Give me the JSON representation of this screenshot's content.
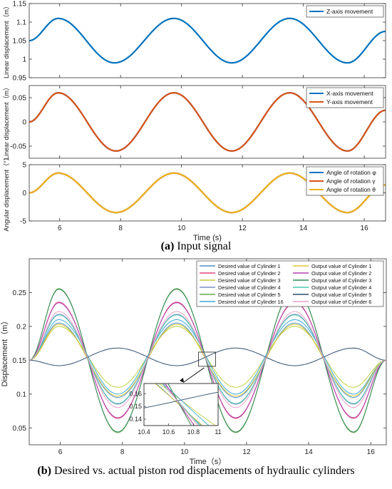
{
  "captions": {
    "a_label": "(a)",
    "a_text": "Input signal",
    "b_label": "(b)",
    "b_text": "Desired vs. actual piston rod displacements of hydraulic cylinders"
  },
  "chart_data": [
    {
      "type": "line",
      "ylabel": "Linear displacement（m）",
      "xlim": [
        5,
        16.7
      ],
      "ylim": [
        0.95,
        1.15
      ],
      "yticks": [
        "0.95",
        "1",
        "1.05",
        "1.1",
        "1.15"
      ],
      "legend_placement": "top-right",
      "series": [
        {
          "name": "Z-axis movement",
          "color": "#0072BD",
          "x": [
            5.0,
            5.95,
            7.8,
            9.75,
            11.65,
            13.55,
            15.45,
            16.7
          ],
          "y": [
            1.05,
            1.11,
            0.99,
            1.11,
            0.99,
            1.11,
            0.99,
            1.075
          ]
        }
      ]
    },
    {
      "type": "line",
      "ylabel": "Linear displacement（m）",
      "xlim": [
        5,
        16.7
      ],
      "ylim": [
        -0.075,
        0.075
      ],
      "yticks": [
        "-0.05",
        "0",
        "0.05"
      ],
      "legend_placement": "top-right",
      "series": [
        {
          "name": "X-axis movement",
          "color": "#0072BD",
          "x": [
            5.0,
            5.95,
            7.85,
            9.75,
            11.65,
            13.55,
            15.45,
            16.7
          ],
          "y": [
            0.0,
            0.06,
            -0.06,
            0.06,
            -0.06,
            0.06,
            -0.06,
            0.024
          ]
        },
        {
          "name": "Y-axis movement",
          "color": "#D95319",
          "x": [
            5.0,
            5.95,
            7.85,
            9.75,
            11.65,
            13.55,
            15.45,
            16.7
          ],
          "y": [
            0.0,
            0.06,
            -0.06,
            0.06,
            -0.06,
            0.06,
            -0.06,
            0.024
          ]
        }
      ]
    },
    {
      "type": "line",
      "ylabel": "Angular displacement（°）",
      "xlabel": "Time (s)",
      "xlim": [
        5,
        16.7
      ],
      "ylim": [
        -5,
        5
      ],
      "yticks": [
        "-5",
        "0",
        "5"
      ],
      "xticks": [
        "6",
        "8",
        "10",
        "12",
        "14",
        "16"
      ],
      "legend_placement": "top-right",
      "series": [
        {
          "name": "Angle of rotation φ",
          "color": "#0072BD",
          "x": [
            5.0,
            5.95,
            7.85,
            9.75,
            11.65,
            13.55,
            15.45,
            16.7
          ],
          "y": [
            0.0,
            3.5,
            -3.5,
            3.5,
            -3.5,
            3.5,
            -3.5,
            1.4
          ]
        },
        {
          "name": "Angle of rotation γ",
          "color": "#D95319",
          "x": [
            5.0,
            5.95,
            7.85,
            9.75,
            11.65,
            13.55,
            15.45,
            16.7
          ],
          "y": [
            0.0,
            3.5,
            -3.5,
            3.5,
            -3.5,
            3.5,
            -3.5,
            1.4
          ]
        },
        {
          "name": "Angle of rotation θ",
          "color": "#EDB120",
          "x": [
            5.0,
            5.95,
            7.85,
            9.75,
            11.65,
            13.55,
            15.45,
            16.7
          ],
          "y": [
            0.0,
            3.5,
            -3.5,
            3.5,
            -3.5,
            3.5,
            -3.5,
            1.4
          ]
        }
      ]
    },
    {
      "type": "line",
      "ylabel": "Displacement（m）",
      "xlabel": "Time（s）",
      "xlim": [
        5,
        16.5
      ],
      "ylim": [
        0.025,
        0.3
      ],
      "yticks": [
        "0.05",
        "0.1",
        "0.15",
        "0.2",
        "0.25"
      ],
      "xticks": [
        "6",
        "8",
        "10",
        "12",
        "14",
        "16"
      ],
      "legend_placement": "top-right",
      "legend_columns": 2,
      "series": [
        {
          "name": "Desired value of Cylinder 1",
          "color": "#4F8FC0",
          "x": [
            5.0,
            5.95,
            7.85,
            9.75,
            11.65,
            13.55,
            15.45,
            16.5
          ],
          "y": [
            0.15,
            0.205,
            0.095,
            0.205,
            0.095,
            0.205,
            0.095,
            0.15
          ]
        },
        {
          "name": "Desired value of Cylinder 2",
          "color": "#E0457B",
          "x": [
            5.0,
            5.95,
            7.85,
            9.75,
            11.65,
            13.55,
            15.45,
            16.5
          ],
          "y": [
            0.15,
            0.236,
            0.064,
            0.236,
            0.064,
            0.236,
            0.064,
            0.15
          ]
        },
        {
          "name": "Desired value of Cylinder 3",
          "color": "#C2CF3E",
          "x": [
            5.0,
            5.95,
            7.85,
            9.75,
            11.65,
            13.55,
            15.45,
            16.5
          ],
          "y": [
            0.15,
            0.2,
            0.11,
            0.2,
            0.11,
            0.2,
            0.11,
            0.15
          ]
        },
        {
          "name": "Desired value of Cylinder 4",
          "color": "#7E8FC7",
          "x": [
            5.0,
            5.95,
            7.85,
            9.75,
            11.65,
            13.55,
            15.45,
            16.5
          ],
          "y": [
            0.15,
            0.218,
            0.085,
            0.218,
            0.085,
            0.218,
            0.085,
            0.15
          ]
        },
        {
          "name": "Desired value of Cylinder 5",
          "color": "#6AA84F",
          "x": [
            5.0,
            5.95,
            7.85,
            9.75,
            11.65,
            13.55,
            15.45,
            16.5
          ],
          "y": [
            0.15,
            0.256,
            0.043,
            0.256,
            0.043,
            0.256,
            0.043,
            0.15
          ]
        },
        {
          "name": "Desired value of Cylinder 16",
          "color": "#3BA9D9",
          "x": [
            5.0,
            5.95,
            7.85,
            9.75,
            11.65,
            13.55,
            15.45,
            16.5
          ],
          "y": [
            0.15,
            0.21,
            0.1,
            0.21,
            0.1,
            0.21,
            0.1,
            0.15
          ]
        },
        {
          "name": "Output value of Cylinder 1",
          "color": "#E0C93A",
          "x": [
            5.0,
            5.95,
            7.85,
            9.75,
            11.65,
            13.55,
            15.45,
            16.5
          ],
          "y": [
            0.15,
            0.203,
            0.097,
            0.203,
            0.097,
            0.203,
            0.097,
            0.15
          ]
        },
        {
          "name": "Output value of Cylinder 2",
          "color": "#B23FB0",
          "x": [
            5.0,
            5.95,
            7.85,
            9.75,
            11.65,
            13.55,
            15.45,
            16.5
          ],
          "y": [
            0.15,
            0.235,
            0.065,
            0.235,
            0.065,
            0.235,
            0.065,
            0.15
          ]
        },
        {
          "name": "Output value of Cylinder 3",
          "color": "#2E8B57",
          "x": [
            5.0,
            5.95,
            7.85,
            9.75,
            11.65,
            13.55,
            15.45,
            16.5
          ],
          "y": [
            0.15,
            0.255,
            0.044,
            0.255,
            0.044,
            0.255,
            0.044,
            0.15
          ]
        },
        {
          "name": "Output value of Cylinder 4",
          "color": "#48C9B0",
          "x": [
            5.0,
            5.95,
            7.85,
            9.75,
            11.65,
            13.55,
            15.45,
            16.5
          ],
          "y": [
            0.15,
            0.217,
            0.086,
            0.217,
            0.086,
            0.217,
            0.086,
            0.15
          ]
        },
        {
          "name": "Output value of Cylinder 5",
          "color": "#2F4F6F",
          "x": [
            5.0,
            5.95,
            7.85,
            9.75,
            11.65,
            13.55,
            15.45,
            16.5
          ],
          "y": [
            0.15,
            0.142,
            0.168,
            0.142,
            0.168,
            0.142,
            0.168,
            0.15
          ]
        },
        {
          "name": "Output value of Cylinder 6",
          "color": "#E8A0C8",
          "x": [
            5.0,
            5.95,
            7.85,
            9.75,
            11.65,
            13.55,
            15.45,
            16.5
          ],
          "y": [
            0.15,
            0.222,
            0.08,
            0.222,
            0.08,
            0.222,
            0.08,
            0.15
          ]
        }
      ],
      "inset": {
        "xlim": [
          10.4,
          11
        ],
        "ylim": [
          0.135,
          0.168
        ],
        "xticks": [
          "10.4",
          "10.6",
          "10.8",
          "11"
        ],
        "yticks": [
          "0.14",
          "0.15",
          "0.16"
        ]
      }
    }
  ]
}
